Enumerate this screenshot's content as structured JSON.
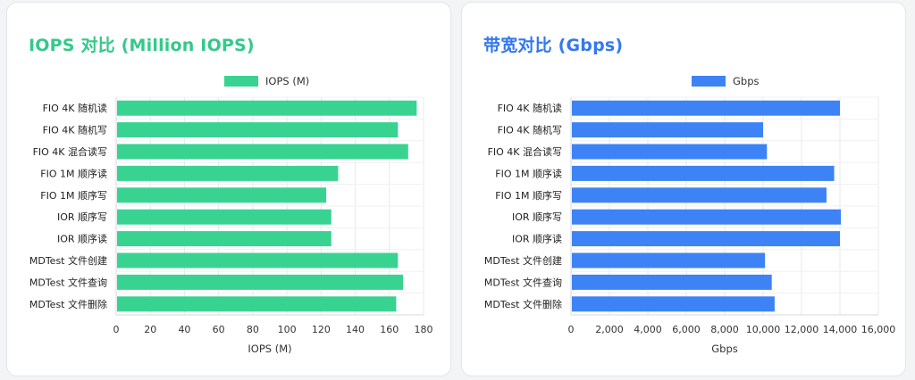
{
  "charts": [
    {
      "title": "IOPS 对比 (Million IOPS)",
      "title_color": "#34c98a",
      "bar_color": "#39d391",
      "chart_data": {
        "type": "bar",
        "orientation": "horizontal",
        "categories": [
          "FIO 4K 随机读",
          "FIO 4K 随机写",
          "FIO 4K 混合读写",
          "FIO 1M 顺序读",
          "FIO 1M 顺序写",
          "IOR 顺序写",
          "IOR 顺序读",
          "MDTest 文件创建",
          "MDTest 文件查询",
          "MDTest 文件删除"
        ],
        "series": [
          {
            "name": "IOPS (M)",
            "values": [
              176,
              165,
              171,
              130,
              123,
              126,
              126,
              165,
              168,
              164
            ]
          }
        ],
        "xlabel": "IOPS (M)",
        "ylabel": "",
        "xlim": [
          0,
          180
        ],
        "xticks": [
          0,
          20,
          40,
          60,
          80,
          100,
          120,
          140,
          160,
          180
        ],
        "xtick_labels": [
          "0",
          "20",
          "40",
          "60",
          "80",
          "100",
          "120",
          "140",
          "160",
          "180"
        ],
        "grid": true,
        "legend": "top-center"
      }
    },
    {
      "title": "带宽对比 (Gbps)",
      "title_color": "#3478f0",
      "bar_color": "#3d83f5",
      "chart_data": {
        "type": "bar",
        "orientation": "horizontal",
        "categories": [
          "FIO 4K 随机读",
          "FIO 4K 随机写",
          "FIO 4K 混合读写",
          "FIO 1M 顺序读",
          "FIO 1M 顺序写",
          "IOR 顺序写",
          "IOR 顺序读",
          "MDTest 文件创建",
          "MDTest 文件查询",
          "MDTest 文件删除"
        ],
        "series": [
          {
            "name": "Gbps",
            "values": [
              14000,
              10000,
              10200,
              13700,
              13300,
              14050,
              14000,
              10100,
              10450,
              10600
            ]
          }
        ],
        "xlabel": "Gbps",
        "ylabel": "",
        "xlim": [
          0,
          16000
        ],
        "xticks": [
          0,
          2000,
          4000,
          6000,
          8000,
          10000,
          12000,
          14000,
          16000
        ],
        "xtick_labels": [
          "0",
          "2,000",
          "4,000",
          "6,000",
          "8,000",
          "10,000",
          "12,000",
          "14,000",
          "16,000"
        ],
        "grid": true,
        "legend": "top-center"
      }
    }
  ]
}
